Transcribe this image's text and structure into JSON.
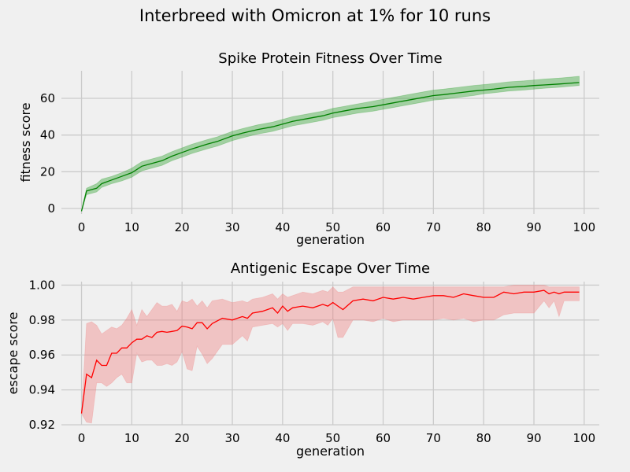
{
  "figure": {
    "title": "Interbreed with Omicron at 1% for 10 runs",
    "background": "#f0f0f0",
    "grid_color": "#cbcbcb"
  },
  "chart_data": [
    {
      "type": "line",
      "title": "Spike Protein Fitness Over Time",
      "xlabel": "generation",
      "ylabel": "fitness score",
      "xlim": [
        -4,
        103
      ],
      "ylim": [
        -3,
        75
      ],
      "xticks": [
        0,
        10,
        20,
        30,
        40,
        50,
        60,
        70,
        80,
        90,
        100
      ],
      "yticks": [
        0,
        20,
        40,
        60
      ],
      "grid": true,
      "legend": "none",
      "color": "#008000",
      "band_color": "#2ca02c",
      "band_label": "min–max across runs",
      "series": [
        {
          "x": [
            0,
            1,
            3,
            4,
            6,
            8,
            10,
            12,
            14,
            16,
            18,
            20,
            22,
            25,
            27,
            30,
            32,
            35,
            38,
            40,
            42,
            45,
            48,
            50,
            52,
            55,
            58,
            60,
            62,
            65,
            68,
            70,
            72,
            75,
            78,
            80,
            82,
            85,
            88,
            90,
            92,
            95,
            97,
            99
          ],
          "mean": [
            -1.5,
            9.5,
            11,
            13.5,
            15.5,
            17.5,
            19.5,
            23,
            24.5,
            26,
            28.5,
            30.5,
            32.5,
            35,
            36.5,
            39.5,
            41,
            43,
            44.5,
            46,
            47.5,
            49,
            50.5,
            52,
            53,
            54.5,
            55.5,
            56.5,
            57.5,
            59,
            60.5,
            61.5,
            62,
            63,
            64,
            64.5,
            65,
            66,
            66.5,
            67,
            67.3,
            67.8,
            68.2,
            68.6
          ],
          "min": [
            -1.5,
            7.5,
            9,
            11.5,
            13.5,
            15,
            17,
            20.5,
            22,
            23.5,
            26,
            28,
            30,
            32.5,
            34,
            37,
            38.5,
            40.5,
            42,
            43.5,
            45,
            46.5,
            48,
            49.5,
            50.5,
            52,
            53,
            54,
            55,
            56.5,
            58,
            59,
            59.5,
            60.5,
            61.5,
            62.5,
            63,
            64,
            64.5,
            65,
            65.5,
            66,
            66.5,
            67
          ],
          "max": [
            -1.5,
            11,
            13.5,
            16,
            17.5,
            19.5,
            22,
            25.5,
            27,
            28.5,
            31,
            33,
            35,
            37.5,
            39,
            42,
            43.5,
            45.5,
            47,
            48.5,
            50,
            51.5,
            53,
            54.5,
            55.5,
            57,
            58.5,
            59.5,
            60.5,
            62,
            63.5,
            64.5,
            65,
            66,
            67,
            67.5,
            68,
            69,
            69.5,
            70,
            70.5,
            71,
            71.5,
            72
          ]
        }
      ]
    },
    {
      "type": "line",
      "title": "Antigenic Escape Over Time",
      "xlabel": "generation",
      "ylabel": "escape score",
      "xlim": [
        -4,
        103
      ],
      "ylim": [
        0.92,
        1.002
      ],
      "xticks": [
        0,
        10,
        20,
        30,
        40,
        50,
        60,
        70,
        80,
        90,
        100
      ],
      "yticks": [
        0.92,
        0.94,
        0.96,
        0.98,
        1.0
      ],
      "grid": true,
      "legend": "none",
      "color": "#ff0000",
      "band_color": "#f08080",
      "band_label": "min–max across runs",
      "series": [
        {
          "x": [
            0,
            1,
            2,
            3,
            4,
            5,
            6,
            7,
            8,
            9,
            10,
            11,
            12,
            13,
            14,
            15,
            16,
            17,
            18,
            19,
            20,
            21,
            22,
            23,
            24,
            25,
            26,
            28,
            30,
            32,
            33,
            34,
            36,
            38,
            39,
            40,
            41,
            42,
            44,
            46,
            48,
            49,
            50,
            51,
            52,
            54,
            56,
            58,
            60,
            62,
            64,
            66,
            68,
            70,
            72,
            74,
            76,
            78,
            80,
            82,
            84,
            86,
            88,
            90,
            92,
            93,
            94,
            95,
            96,
            97,
            98,
            99
          ],
          "mean": [
            0.9265,
            0.949,
            0.947,
            0.957,
            0.954,
            0.954,
            0.961,
            0.961,
            0.964,
            0.964,
            0.967,
            0.969,
            0.969,
            0.971,
            0.97,
            0.973,
            0.9735,
            0.973,
            0.9735,
            0.974,
            0.9765,
            0.976,
            0.975,
            0.9785,
            0.9785,
            0.975,
            0.978,
            0.981,
            0.98,
            0.982,
            0.981,
            0.984,
            0.985,
            0.987,
            0.984,
            0.988,
            0.985,
            0.987,
            0.988,
            0.987,
            0.989,
            0.988,
            0.99,
            0.988,
            0.986,
            0.991,
            0.992,
            0.991,
            0.993,
            0.992,
            0.993,
            0.992,
            0.993,
            0.994,
            0.994,
            0.993,
            0.995,
            0.994,
            0.993,
            0.993,
            0.996,
            0.995,
            0.996,
            0.996,
            0.997,
            0.995,
            0.996,
            0.995,
            0.996,
            0.996,
            0.996,
            0.996
          ],
          "min": [
            0.9265,
            0.9215,
            0.921,
            0.944,
            0.944,
            0.942,
            0.944,
            0.947,
            0.949,
            0.944,
            0.944,
            0.961,
            0.956,
            0.957,
            0.957,
            0.954,
            0.954,
            0.955,
            0.954,
            0.956,
            0.962,
            0.952,
            0.951,
            0.965,
            0.9605,
            0.955,
            0.958,
            0.966,
            0.966,
            0.971,
            0.968,
            0.976,
            0.977,
            0.978,
            0.976,
            0.978,
            0.974,
            0.978,
            0.978,
            0.977,
            0.979,
            0.977,
            0.981,
            0.97,
            0.97,
            0.98,
            0.98,
            0.979,
            0.981,
            0.979,
            0.98,
            0.98,
            0.98,
            0.98,
            0.981,
            0.98,
            0.981,
            0.979,
            0.98,
            0.98,
            0.983,
            0.984,
            0.984,
            0.984,
            0.991,
            0.987,
            0.991,
            0.982,
            0.991,
            0.991,
            0.991,
            0.991
          ],
          "max": [
            0.9265,
            0.978,
            0.979,
            0.977,
            0.972,
            0.974,
            0.976,
            0.975,
            0.977,
            0.981,
            0.986,
            0.977,
            0.986,
            0.982,
            0.986,
            0.99,
            0.988,
            0.988,
            0.989,
            0.985,
            0.991,
            0.99,
            0.992,
            0.988,
            0.991,
            0.987,
            0.991,
            0.992,
            0.99,
            0.991,
            0.99,
            0.992,
            0.993,
            0.995,
            0.992,
            0.995,
            0.993,
            0.994,
            0.996,
            0.995,
            0.997,
            0.996,
            0.999,
            0.996,
            0.996,
            0.999,
            0.999,
            0.999,
            0.999,
            0.999,
            0.999,
            0.999,
            0.999,
            0.999,
            0.999,
            0.999,
            0.999,
            0.999,
            0.999,
            0.999,
            0.999,
            1.0,
            1.0,
            1.0,
            1.0,
            0.999,
            0.999,
            0.999,
            0.999,
            0.999,
            0.999,
            0.999
          ]
        }
      ]
    }
  ]
}
